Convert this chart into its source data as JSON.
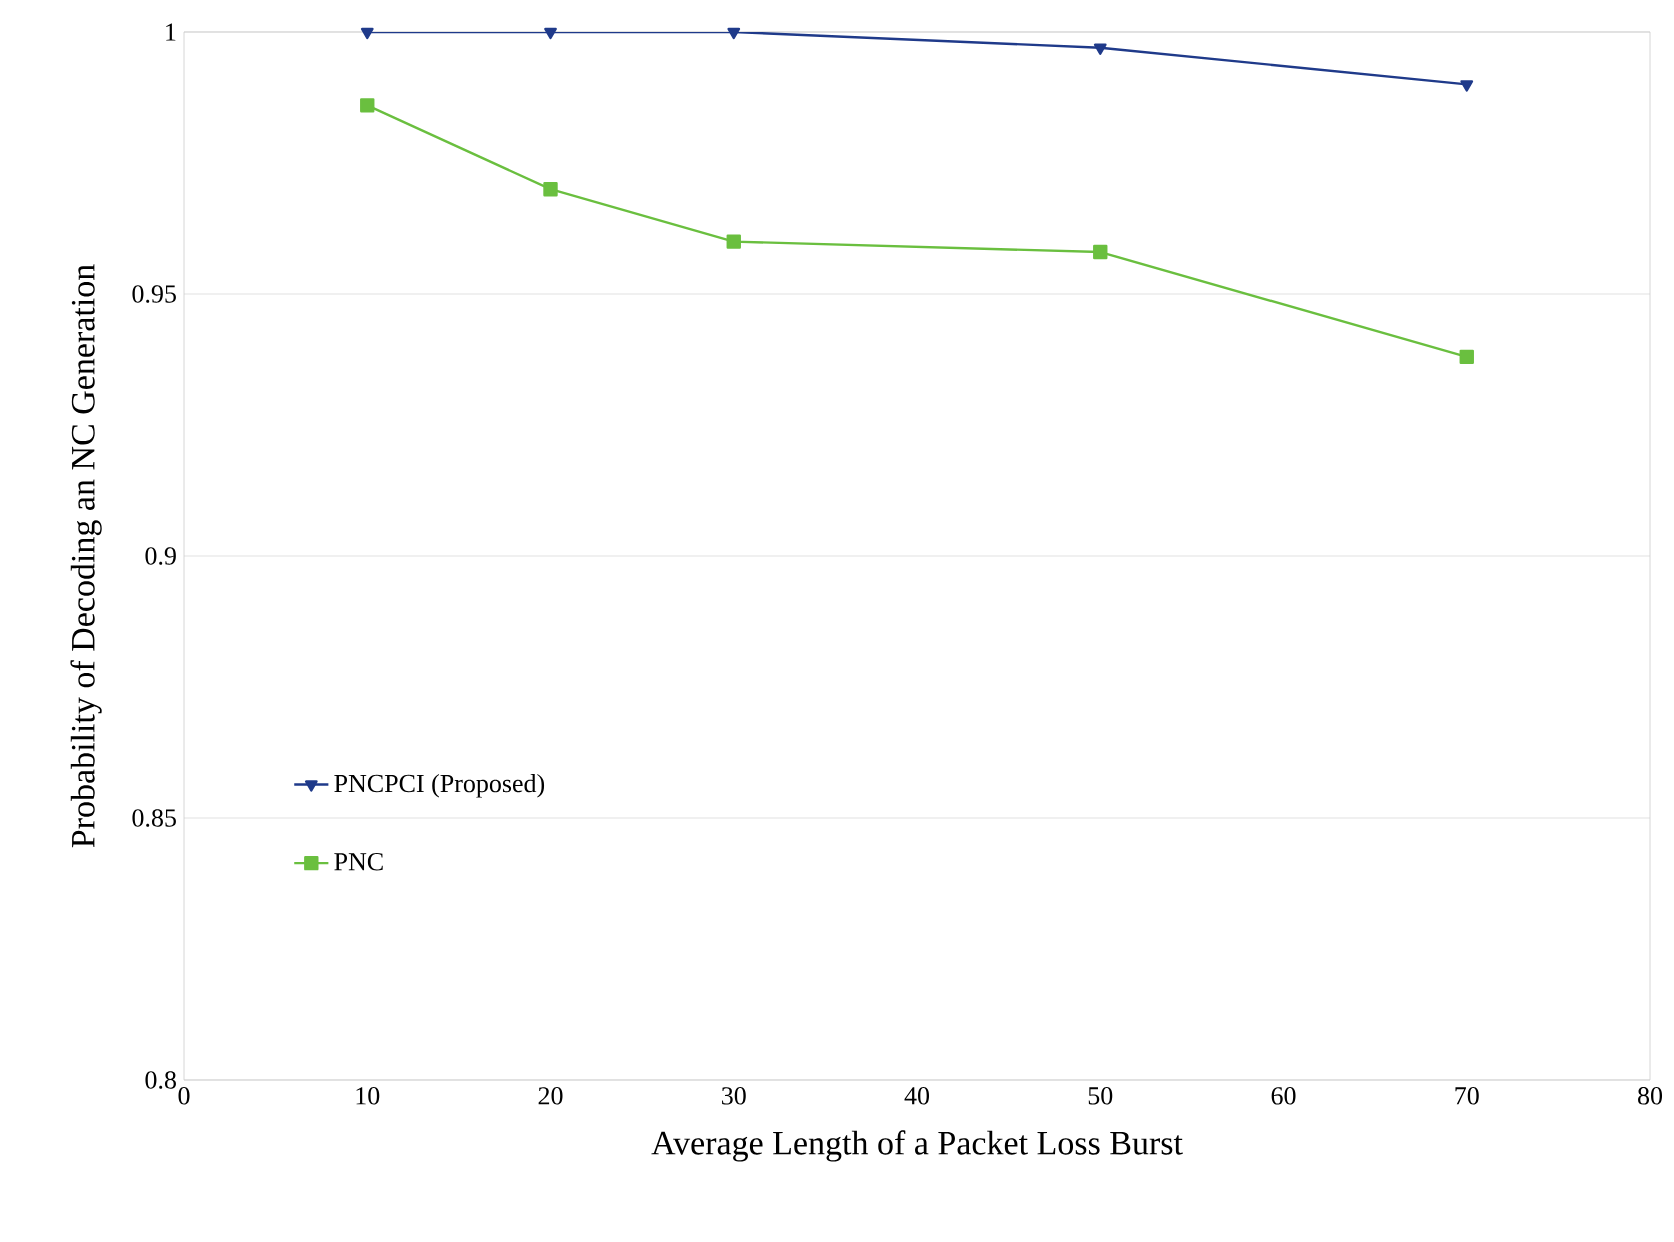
{
  "chart_data": {
    "type": "line",
    "xlabel": "Average Length of a Packet Loss Burst",
    "ylabel": "Probability of Decoding an NC Generation",
    "x": [
      10,
      20,
      30,
      50,
      70
    ],
    "series": [
      {
        "name": "PNCPCI (Proposed)",
        "color": "#1f3a8a",
        "marker": "triangle",
        "values": [
          1.0,
          1.0,
          1.0,
          0.997,
          0.99
        ]
      },
      {
        "name": "PNC",
        "color": "#6abf3f",
        "marker": "square",
        "values": [
          0.986,
          0.97,
          0.96,
          0.958,
          0.938
        ]
      }
    ],
    "xlim": [
      0,
      80
    ],
    "xticks": [
      0,
      10,
      20,
      30,
      40,
      50,
      60,
      70,
      80
    ],
    "ylim": [
      0.8,
      1
    ],
    "yticks": [
      0.8,
      {
        "value": 0.85,
        "label": "0.85"
      },
      {
        "value": 0.9,
        "label": "0.9"
      },
      {
        "value": 0.95,
        "label": "0.95"
      },
      1
    ],
    "grid": "y",
    "legend": "left",
    "line_style": "solid"
  }
}
